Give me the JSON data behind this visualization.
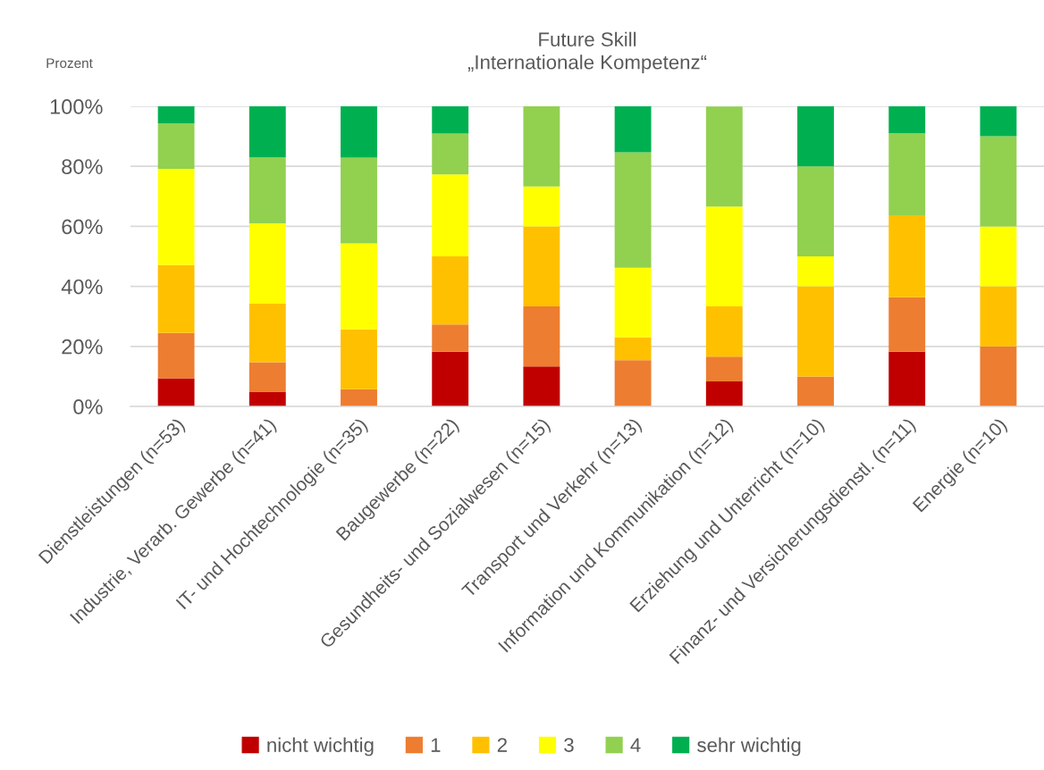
{
  "chart_data": {
    "type": "bar",
    "title": "Future Skill\n„Internationale Kompetenz“",
    "ylabel": "Prozent",
    "categories": [
      "Dienstleistungen (n=53)",
      "Industrie, Verarb. Gewerbe (n=41)",
      "IT- und Hochtechnologie (n=35)",
      "Baugewerbe (n=22)",
      "Gesundheits- und Sozialwesen (n=15)",
      "Transport und Verkehr (n=13)",
      "Information und Kommunikation (n=12)",
      "Erziehung und Unterricht (n=10)",
      "Finanz- und Versicherungsdienstl. (n=11)",
      "Energie (n=10)"
    ],
    "series": [
      {
        "name": "nicht wichtig",
        "color": "#c00000",
        "values": [
          9.4,
          4.9,
          0,
          18.2,
          13.3,
          0,
          8.3,
          0,
          18.2,
          0
        ]
      },
      {
        "name": "1",
        "color": "#ed7d31",
        "values": [
          15.1,
          9.8,
          5.7,
          9.1,
          20.0,
          15.4,
          8.3,
          10,
          18.2,
          20
        ]
      },
      {
        "name": "2",
        "color": "#ffc000",
        "values": [
          22.6,
          19.5,
          20.0,
          22.7,
          26.7,
          7.7,
          16.7,
          30,
          27.3,
          20
        ]
      },
      {
        "name": "3",
        "color": "#ffff00",
        "values": [
          32.1,
          26.8,
          28.6,
          27.3,
          13.3,
          23.1,
          33.3,
          10,
          0,
          20
        ]
      },
      {
        "name": "4",
        "color": "#92d050",
        "values": [
          15.1,
          22.0,
          28.6,
          13.6,
          26.7,
          38.5,
          33.3,
          30,
          27.3,
          30
        ]
      },
      {
        "name": "sehr wichtig",
        "color": "#00b050",
        "values": [
          5.7,
          17.1,
          17.1,
          9.1,
          0,
          15.4,
          0,
          20,
          9.1,
          10
        ]
      }
    ],
    "stacked": true,
    "ylim": [
      0,
      100
    ],
    "yticks": [
      {
        "value": 0,
        "label": "0%"
      },
      {
        "value": 20,
        "label": "20%"
      },
      {
        "value": 40,
        "label": "40%"
      },
      {
        "value": 60,
        "label": "60%"
      },
      {
        "value": 80,
        "label": "80%"
      },
      {
        "value": 100,
        "label": "100%"
      }
    ],
    "grid": "y",
    "legend": "bottom"
  }
}
